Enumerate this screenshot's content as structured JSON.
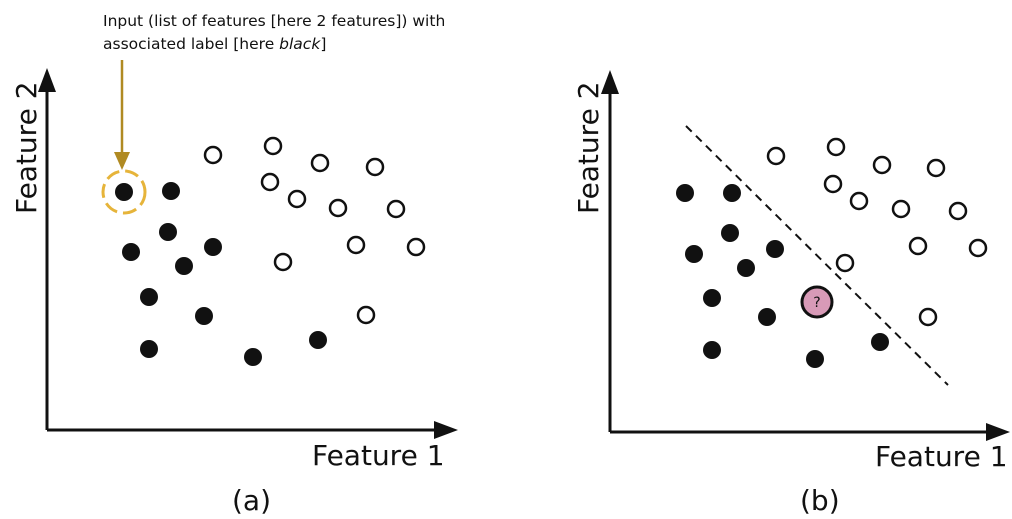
{
  "colors": {
    "ink": "#111111",
    "arrow": "#b08a22",
    "highlight": "#e6b43a",
    "query_fill": "#d89ab7"
  },
  "annotation": {
    "line1": "Input (list of features [here 2 features]) with",
    "line2_prefix": "associated label [here ",
    "line2_italic": "black",
    "line2_suffix": "]"
  },
  "panel_a": {
    "label": "(a)",
    "x_axis_label": "Feature 1",
    "y_axis_label": "Feature 2",
    "black_points": [
      [
        124,
        192
      ],
      [
        171,
        191
      ],
      [
        168,
        232
      ],
      [
        131,
        252
      ],
      [
        213,
        247
      ],
      [
        184,
        266
      ],
      [
        149,
        297
      ],
      [
        204,
        316
      ],
      [
        149,
        349
      ],
      [
        253,
        357
      ],
      [
        318,
        340
      ]
    ],
    "white_points": [
      [
        213,
        155
      ],
      [
        273,
        146
      ],
      [
        320,
        163
      ],
      [
        375,
        167
      ],
      [
        270,
        182
      ],
      [
        297,
        199
      ],
      [
        338,
        208
      ],
      [
        396,
        209
      ],
      [
        356,
        245
      ],
      [
        416,
        247
      ],
      [
        283,
        262
      ],
      [
        366,
        315
      ]
    ]
  },
  "panel_b": {
    "label": "(b)",
    "x_axis_label": "Feature 1",
    "y_axis_label": "Feature 2",
    "query_label": "?",
    "black_points": [
      [
        685,
        193
      ],
      [
        732,
        193
      ],
      [
        730,
        233
      ],
      [
        694,
        254
      ],
      [
        775,
        249
      ],
      [
        746,
        268
      ],
      [
        712,
        298
      ],
      [
        767,
        317
      ],
      [
        712,
        350
      ],
      [
        815,
        359
      ],
      [
        880,
        342
      ]
    ],
    "white_points": [
      [
        776,
        156
      ],
      [
        836,
        147
      ],
      [
        882,
        165
      ],
      [
        936,
        168
      ],
      [
        833,
        184
      ],
      [
        859,
        201
      ],
      [
        901,
        209
      ],
      [
        958,
        211
      ],
      [
        918,
        246
      ],
      [
        978,
        248
      ],
      [
        845,
        263
      ],
      [
        928,
        317
      ]
    ]
  }
}
